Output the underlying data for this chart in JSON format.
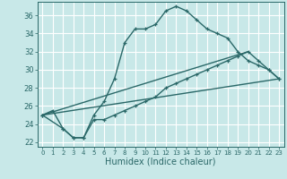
{
  "title": "",
  "xlabel": "Humidex (Indice chaleur)",
  "bg_color": "#c8e8e8",
  "grid_color": "#ffffff",
  "line_color": "#2a6868",
  "xlim": [
    -0.5,
    23.5
  ],
  "ylim": [
    21.5,
    37.5
  ],
  "xticks": [
    0,
    1,
    2,
    3,
    4,
    5,
    6,
    7,
    8,
    9,
    10,
    11,
    12,
    13,
    14,
    15,
    16,
    17,
    18,
    19,
    20,
    21,
    22,
    23
  ],
  "yticks": [
    22,
    24,
    26,
    28,
    30,
    32,
    34,
    36
  ],
  "series1_x": [
    0,
    1,
    2,
    3,
    4,
    5,
    6,
    7,
    8,
    9,
    10,
    11,
    12,
    13,
    14,
    15,
    16,
    17,
    18,
    19,
    20,
    21,
    22,
    23
  ],
  "series1_y": [
    25,
    25.5,
    23.5,
    22.5,
    22.5,
    25,
    26.5,
    29,
    33,
    34.5,
    34.5,
    35,
    36.5,
    37,
    36.5,
    35.5,
    34.5,
    34,
    33.5,
    32,
    31,
    30.5,
    30,
    29
  ],
  "series2_x": [
    0,
    2,
    3,
    4,
    5,
    6,
    7,
    8,
    9,
    10,
    11,
    12,
    13,
    14,
    15,
    16,
    17,
    18,
    19,
    20,
    21,
    22,
    23
  ],
  "series2_y": [
    25,
    23.5,
    22.5,
    22.5,
    24.5,
    24.5,
    25,
    25.5,
    26,
    26.5,
    27,
    28,
    28.5,
    29,
    29.5,
    30,
    30.5,
    31,
    31.5,
    32,
    31,
    30,
    29
  ],
  "series3_x": [
    0,
    23
  ],
  "series3_y": [
    25,
    29
  ],
  "series4_x": [
    0,
    20
  ],
  "series4_y": [
    25,
    32
  ]
}
